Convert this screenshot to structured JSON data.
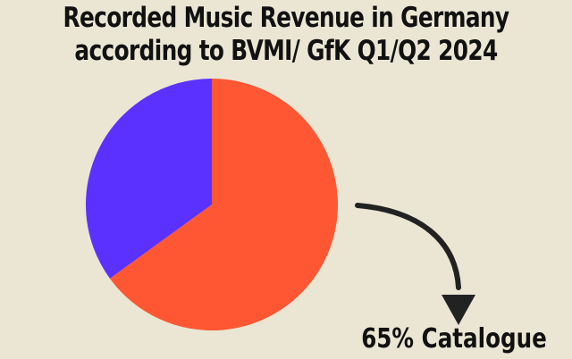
{
  "chart_data": {
    "type": "pie",
    "title": "Recorded Music Revenue in Germany",
    "subtitle": "according to BVMI/ GfK Q1/Q2 2024",
    "categories": [
      "Catalogue",
      ""
    ],
    "values": [
      65,
      35
    ],
    "colors": [
      "#ff5733",
      "#5b31ff"
    ],
    "annotation": "65% Catalogue",
    "legend": "none",
    "grid": false
  },
  "colors": {
    "background": "#ebe6d4",
    "text": "#111111",
    "arrow": "#222222"
  }
}
